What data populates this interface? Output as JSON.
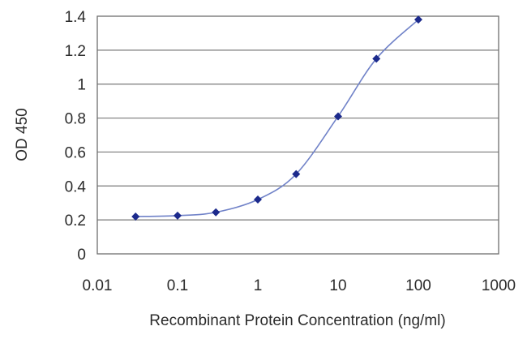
{
  "chart_data": {
    "type": "line",
    "title": "",
    "xlabel": "Recombinant Protein Concentration (ng/ml)",
    "ylabel": "OD 450",
    "x_scale": "log",
    "xlim": [
      0.01,
      1000
    ],
    "ylim": [
      0,
      1.4
    ],
    "x_ticks": [
      "0.01",
      "0.1",
      "1",
      "10",
      "100",
      "1000"
    ],
    "y_ticks": [
      "0",
      "0.2",
      "0.4",
      "0.6",
      "0.8",
      "1",
      "1.2",
      "1.4"
    ],
    "grid": "horizontal",
    "legend": "none",
    "series": [
      {
        "x": [
          0.03,
          0.1,
          0.3,
          1,
          3,
          10,
          30,
          100
        ],
        "y": [
          0.22,
          0.225,
          0.245,
          0.32,
          0.47,
          0.81,
          1.15,
          1.38
        ],
        "marker": "diamond",
        "color": "#1c2a8c",
        "line_color": "#7082c8"
      }
    ],
    "colors": {
      "plot_border": "#6e6e6e",
      "grid": "#7a7a7a",
      "text": "#2b2b2b"
    }
  }
}
